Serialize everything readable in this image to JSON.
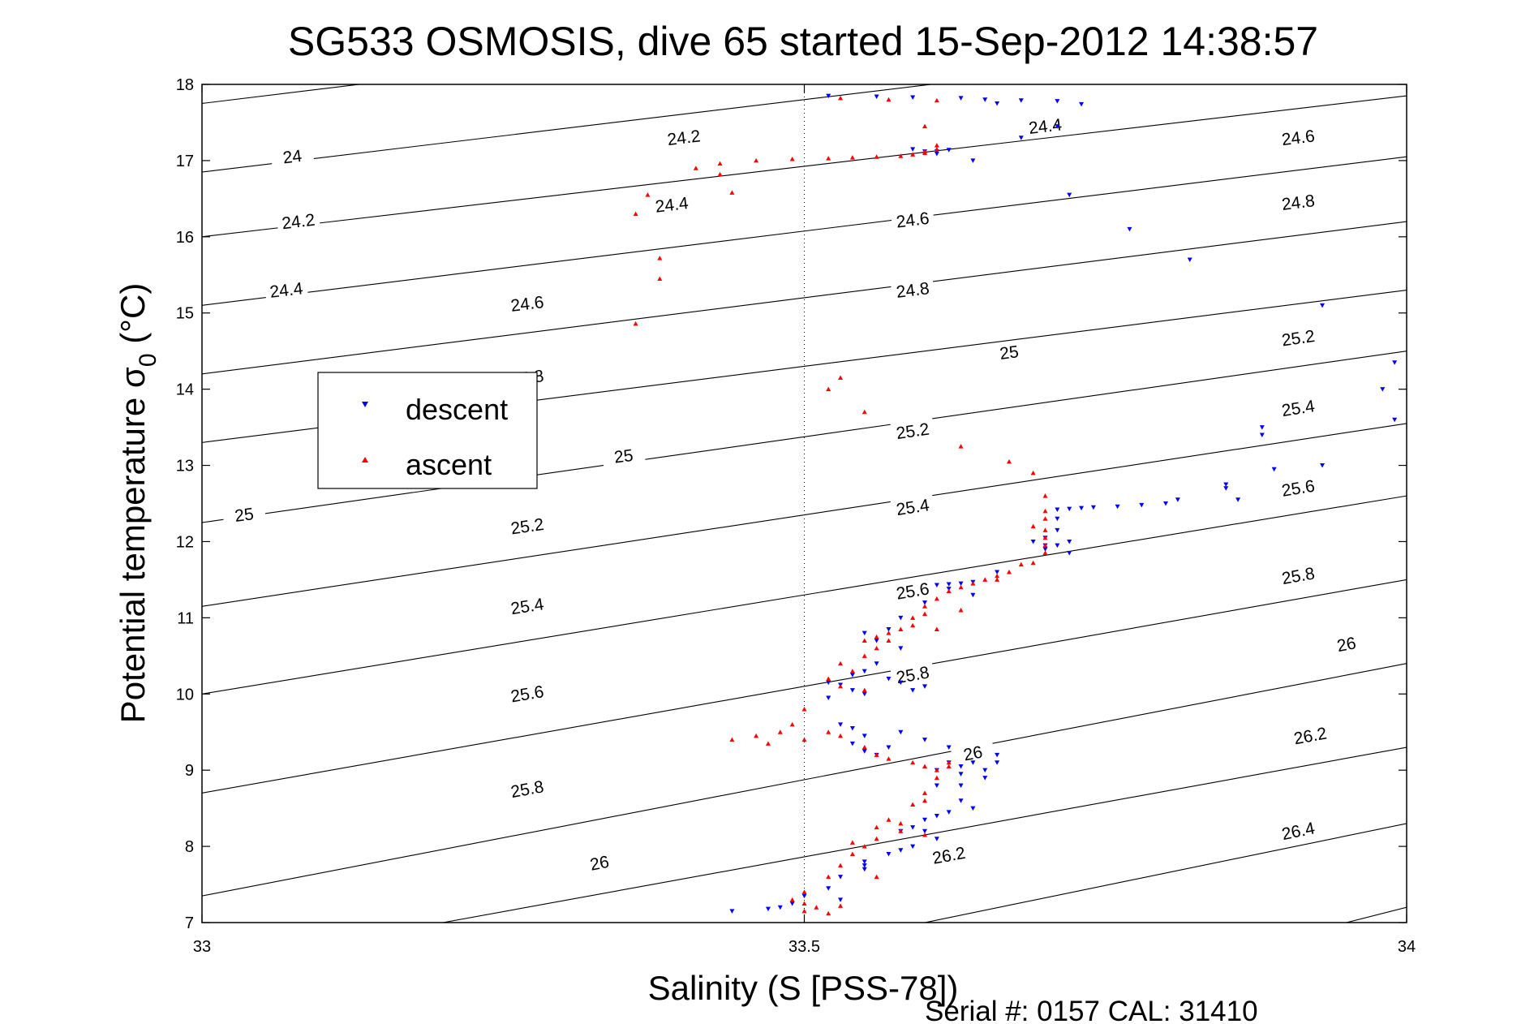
{
  "chart_data": {
    "type": "scatter",
    "title": "SG533 OSMOSIS, dive 65 started 15-Sep-2012 14:38:57",
    "xlabel": "Salinity (S [PSS-78])",
    "ylabel": "Potential temperature σ",
    "ylabel_subscript": "0",
    "ylabel_unit": " (°C)",
    "footer": "Serial #: 0157  CAL: 31410",
    "xlim": [
      33,
      34
    ],
    "ylim": [
      7,
      18
    ],
    "x_ticks": [
      33,
      33.5,
      34
    ],
    "x_tick_labels": [
      "33",
      "33.5",
      "34"
    ],
    "y_ticks": [
      7,
      8,
      9,
      10,
      11,
      12,
      13,
      14,
      15,
      16,
      17,
      18
    ],
    "y_tick_labels": [
      "7",
      "8",
      "9",
      "10",
      "11",
      "12",
      "13",
      "14",
      "15",
      "16",
      "17",
      "18"
    ],
    "grid": "dotted, at x ticks",
    "legend_position": "upper-left",
    "series": [
      {
        "name": "descent",
        "marker": "triangle-down",
        "color": "#0000ff",
        "points": [
          [
            33.52,
            17.85
          ],
          [
            33.56,
            17.84
          ],
          [
            33.59,
            17.83
          ],
          [
            33.63,
            17.82
          ],
          [
            33.65,
            17.8
          ],
          [
            33.68,
            17.79
          ],
          [
            33.71,
            17.78
          ],
          [
            33.73,
            17.74
          ],
          [
            33.66,
            17.75
          ],
          [
            33.59,
            17.15
          ],
          [
            33.6,
            17.12
          ],
          [
            33.61,
            17.12
          ],
          [
            33.62,
            17.14
          ],
          [
            33.61,
            17.09
          ],
          [
            33.64,
            17.0
          ],
          [
            33.68,
            17.3
          ],
          [
            33.71,
            17.45
          ],
          [
            33.72,
            16.55
          ],
          [
            33.77,
            16.1
          ],
          [
            33.82,
            15.7
          ],
          [
            33.93,
            15.1
          ],
          [
            33.99,
            14.35
          ],
          [
            33.98,
            14.0
          ],
          [
            33.99,
            13.6
          ],
          [
            33.93,
            13.0
          ],
          [
            33.88,
            13.5
          ],
          [
            33.88,
            13.4
          ],
          [
            33.89,
            12.95
          ],
          [
            33.85,
            12.75
          ],
          [
            33.85,
            12.7
          ],
          [
            33.86,
            12.55
          ],
          [
            33.81,
            12.55
          ],
          [
            33.8,
            12.5
          ],
          [
            33.78,
            12.48
          ],
          [
            33.76,
            12.46
          ],
          [
            33.74,
            12.45
          ],
          [
            33.73,
            12.44
          ],
          [
            33.72,
            12.43
          ],
          [
            33.71,
            12.42
          ],
          [
            33.71,
            12.3
          ],
          [
            33.71,
            12.15
          ],
          [
            33.72,
            12.0
          ],
          [
            33.72,
            11.85
          ],
          [
            33.71,
            11.95
          ],
          [
            33.7,
            12.05
          ],
          [
            33.7,
            11.95
          ],
          [
            33.69,
            12.0
          ],
          [
            33.7,
            11.9
          ],
          [
            33.66,
            11.6
          ],
          [
            33.64,
            11.47
          ],
          [
            33.63,
            11.45
          ],
          [
            33.62,
            11.44
          ],
          [
            33.61,
            11.43
          ],
          [
            33.62,
            11.38
          ],
          [
            33.64,
            11.3
          ],
          [
            33.6,
            11.2
          ],
          [
            33.58,
            11.0
          ],
          [
            33.57,
            10.85
          ],
          [
            33.55,
            10.8
          ],
          [
            33.56,
            10.7
          ],
          [
            33.58,
            10.6
          ],
          [
            33.56,
            10.4
          ],
          [
            33.55,
            10.3
          ],
          [
            33.54,
            10.25
          ],
          [
            33.57,
            10.2
          ],
          [
            33.58,
            10.15
          ],
          [
            33.6,
            10.1
          ],
          [
            33.59,
            10.05
          ],
          [
            33.55,
            10.0
          ],
          [
            33.54,
            10.05
          ],
          [
            33.52,
            10.15
          ],
          [
            33.52,
            9.95
          ],
          [
            33.53,
            9.6
          ],
          [
            33.54,
            9.55
          ],
          [
            33.55,
            9.45
          ],
          [
            33.54,
            9.35
          ],
          [
            33.55,
            9.25
          ],
          [
            33.56,
            9.2
          ],
          [
            33.57,
            9.3
          ],
          [
            33.58,
            9.5
          ],
          [
            33.6,
            9.4
          ],
          [
            33.62,
            9.3
          ],
          [
            33.62,
            9.1
          ],
          [
            33.61,
            9.0
          ],
          [
            33.63,
            9.05
          ],
          [
            33.64,
            9.1
          ],
          [
            33.65,
            9.0
          ],
          [
            33.65,
            8.9
          ],
          [
            33.66,
            9.1
          ],
          [
            33.66,
            9.2
          ],
          [
            33.63,
            8.95
          ],
          [
            33.61,
            8.8
          ],
          [
            33.63,
            8.6
          ],
          [
            33.64,
            8.5
          ],
          [
            33.62,
            8.45
          ],
          [
            33.6,
            8.35
          ],
          [
            33.59,
            8.25
          ],
          [
            33.6,
            8.2
          ],
          [
            33.61,
            8.1
          ],
          [
            33.59,
            8.0
          ],
          [
            33.58,
            7.95
          ],
          [
            33.55,
            7.8
          ],
          [
            33.55,
            7.75
          ],
          [
            33.53,
            7.6
          ],
          [
            33.52,
            7.45
          ],
          [
            33.5,
            7.35
          ],
          [
            33.49,
            7.25
          ],
          [
            33.48,
            7.2
          ],
          [
            33.47,
            7.18
          ],
          [
            33.44,
            7.15
          ],
          [
            33.53,
            7.3
          ],
          [
            33.55,
            7.7
          ],
          [
            33.57,
            7.9
          ],
          [
            33.58,
            8.2
          ],
          [
            33.61,
            8.4
          ],
          [
            33.63,
            8.8
          ],
          [
            33.53,
            10.12
          ]
        ]
      },
      {
        "name": "ascent",
        "marker": "triangle-up",
        "color": "#ff0000",
        "points": [
          [
            33.53,
            17.82
          ],
          [
            33.57,
            17.8
          ],
          [
            33.61,
            17.79
          ],
          [
            33.6,
            17.45
          ],
          [
            33.59,
            17.08
          ],
          [
            33.6,
            17.1
          ],
          [
            33.61,
            17.15
          ],
          [
            33.61,
            17.2
          ],
          [
            33.6,
            17.12
          ],
          [
            33.58,
            17.06
          ],
          [
            33.56,
            17.05
          ],
          [
            33.54,
            17.04
          ],
          [
            33.52,
            17.03
          ],
          [
            33.49,
            17.02
          ],
          [
            33.46,
            17.0
          ],
          [
            33.43,
            16.96
          ],
          [
            33.41,
            16.9
          ],
          [
            33.43,
            16.82
          ],
          [
            33.44,
            16.58
          ],
          [
            33.37,
            16.55
          ],
          [
            33.36,
            16.3
          ],
          [
            33.38,
            15.72
          ],
          [
            33.38,
            15.45
          ],
          [
            33.36,
            14.86
          ],
          [
            33.52,
            14.0
          ],
          [
            33.53,
            14.15
          ],
          [
            33.55,
            13.7
          ],
          [
            33.63,
            13.25
          ],
          [
            33.67,
            13.05
          ],
          [
            33.69,
            12.9
          ],
          [
            33.7,
            12.6
          ],
          [
            33.7,
            12.4
          ],
          [
            33.7,
            12.3
          ],
          [
            33.69,
            12.2
          ],
          [
            33.7,
            12.15
          ],
          [
            33.7,
            12.05
          ],
          [
            33.7,
            11.95
          ],
          [
            33.7,
            11.85
          ],
          [
            33.68,
            11.7
          ],
          [
            33.69,
            11.72
          ],
          [
            33.67,
            11.6
          ],
          [
            33.66,
            11.55
          ],
          [
            33.65,
            11.5
          ],
          [
            33.64,
            11.45
          ],
          [
            33.63,
            11.4
          ],
          [
            33.62,
            11.35
          ],
          [
            33.61,
            11.25
          ],
          [
            33.6,
            11.15
          ],
          [
            33.6,
            11.05
          ],
          [
            33.59,
            11.0
          ],
          [
            33.59,
            10.9
          ],
          [
            33.58,
            10.85
          ],
          [
            33.57,
            10.8
          ],
          [
            33.57,
            10.7
          ],
          [
            33.56,
            10.75
          ],
          [
            33.55,
            10.7
          ],
          [
            33.56,
            10.6
          ],
          [
            33.55,
            10.5
          ],
          [
            33.53,
            10.4
          ],
          [
            33.54,
            10.3
          ],
          [
            33.52,
            10.2
          ],
          [
            33.53,
            10.1
          ],
          [
            33.55,
            10.05
          ],
          [
            33.5,
            9.8
          ],
          [
            33.49,
            9.6
          ],
          [
            33.48,
            9.5
          ],
          [
            33.46,
            9.45
          ],
          [
            33.44,
            9.4
          ],
          [
            33.47,
            9.35
          ],
          [
            33.5,
            9.4
          ],
          [
            33.52,
            9.5
          ],
          [
            33.53,
            9.45
          ],
          [
            33.55,
            9.3
          ],
          [
            33.56,
            9.2
          ],
          [
            33.57,
            9.15
          ],
          [
            33.59,
            9.1
          ],
          [
            33.6,
            9.05
          ],
          [
            33.61,
            9.0
          ],
          [
            33.62,
            9.05
          ],
          [
            33.61,
            8.9
          ],
          [
            33.6,
            8.7
          ],
          [
            33.59,
            8.55
          ],
          [
            33.57,
            8.35
          ],
          [
            33.56,
            8.25
          ],
          [
            33.58,
            8.2
          ],
          [
            33.6,
            8.15
          ],
          [
            33.56,
            8.1
          ],
          [
            33.54,
            8.05
          ],
          [
            33.54,
            7.9
          ],
          [
            33.53,
            7.75
          ],
          [
            33.52,
            7.6
          ],
          [
            33.5,
            7.4
          ],
          [
            33.49,
            7.3
          ],
          [
            33.5,
            7.25
          ],
          [
            33.51,
            7.2
          ],
          [
            33.5,
            7.15
          ],
          [
            33.52,
            7.12
          ],
          [
            33.53,
            7.22
          ],
          [
            33.56,
            7.6
          ],
          [
            33.55,
            8.0
          ],
          [
            33.58,
            8.3
          ],
          [
            33.6,
            8.6
          ],
          [
            33.62,
            9.1
          ],
          [
            33.61,
            10.85
          ],
          [
            33.63,
            11.1
          ],
          [
            33.66,
            11.5
          ]
        ]
      }
    ],
    "contours": [
      {
        "level": "24",
        "pts": [
          [
            33.0,
            17.75
          ],
          [
            33.6,
            18.9
          ]
        ],
        "labels": [
          [
            33.075,
            17.05
          ]
        ]
      },
      {
        "level": "24.2",
        "pts": [
          [
            33.0,
            16.85
          ],
          [
            34.0,
            18.75
          ]
        ],
        "labels": [
          [
            33.08,
            16.2
          ],
          [
            33.4,
            17.3
          ]
        ]
      },
      {
        "level": "24.4",
        "pts": [
          [
            33.0,
            16.0
          ],
          [
            34.0,
            17.85
          ]
        ],
        "labels": [
          [
            33.07,
            15.3
          ],
          [
            33.39,
            16.42
          ],
          [
            33.7,
            17.45
          ]
        ]
      },
      {
        "level": "24.6",
        "pts": [
          [
            33.0,
            15.1
          ],
          [
            34.0,
            17.05
          ]
        ],
        "labels": [
          [
            33.27,
            15.12
          ],
          [
            33.59,
            16.22
          ],
          [
            33.91,
            17.3
          ]
        ]
      },
      {
        "level": "24.8",
        "pts": [
          [
            33.0,
            14.2
          ],
          [
            34.0,
            16.2
          ]
        ],
        "labels": [
          [
            33.27,
            14.15
          ],
          [
            33.59,
            15.3
          ],
          [
            33.91,
            16.45
          ]
        ]
      },
      {
        "level": "25",
        "pts": [
          [
            33.0,
            13.3
          ],
          [
            34.0,
            15.3
          ]
        ],
        "labels": [
          [
            33.035,
            12.35
          ],
          [
            33.35,
            13.12
          ],
          [
            33.67,
            14.48
          ]
        ]
      },
      {
        "level": "25.2",
        "pts": [
          [
            33.0,
            12.25
          ],
          [
            34.0,
            14.5
          ]
        ],
        "labels": [
          [
            33.27,
            12.2
          ],
          [
            33.59,
            13.45
          ],
          [
            33.91,
            14.67
          ]
        ]
      },
      {
        "level": "25.4",
        "pts": [
          [
            33.0,
            11.15
          ],
          [
            34.0,
            13.55
          ]
        ],
        "labels": [
          [
            33.27,
            11.15
          ],
          [
            33.59,
            12.45
          ],
          [
            33.91,
            13.75
          ]
        ]
      },
      {
        "level": "25.6",
        "pts": [
          [
            33.0,
            10.0
          ],
          [
            34.0,
            12.6
          ]
        ],
        "labels": [
          [
            33.27,
            10.0
          ],
          [
            33.59,
            11.35
          ],
          [
            33.91,
            12.7
          ]
        ]
      },
      {
        "level": "25.8",
        "pts": [
          [
            33.0,
            8.7
          ],
          [
            34.0,
            11.5
          ]
        ],
        "labels": [
          [
            33.27,
            8.75
          ],
          [
            33.59,
            10.25
          ],
          [
            33.91,
            11.55
          ]
        ]
      },
      {
        "level": "26",
        "pts": [
          [
            33.0,
            7.35
          ],
          [
            34.0,
            10.4
          ]
        ],
        "labels": [
          [
            33.33,
            7.78
          ],
          [
            33.64,
            9.22
          ],
          [
            33.95,
            10.65
          ]
        ]
      },
      {
        "level": "26.2",
        "pts": [
          [
            33.2,
            7.0
          ],
          [
            34.0,
            9.3
          ]
        ],
        "labels": [
          [
            33.62,
            7.88
          ],
          [
            33.92,
            9.45
          ]
        ]
      },
      {
        "level": "26.4",
        "pts": [
          [
            33.6,
            7.0
          ],
          [
            34.0,
            8.3
          ]
        ],
        "labels": [
          [
            33.91,
            8.2
          ]
        ]
      },
      {
        "level": "26.6",
        "pts": [
          [
            33.95,
            7.0
          ],
          [
            34.0,
            7.2
          ]
        ],
        "labels": []
      }
    ]
  }
}
